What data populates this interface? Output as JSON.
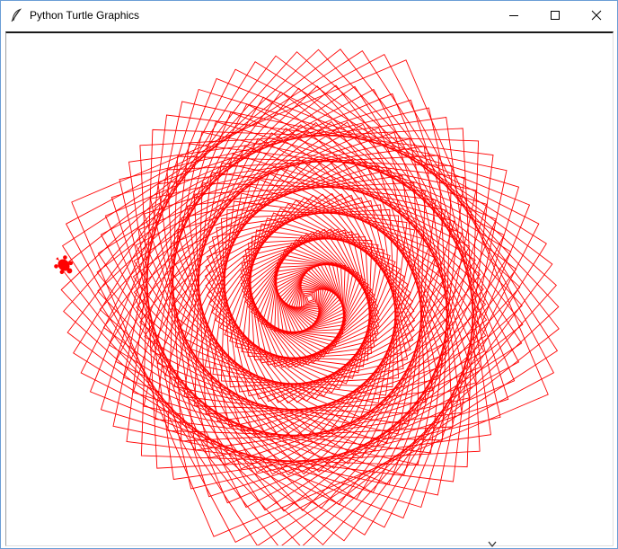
{
  "window": {
    "title": "Python Turtle Graphics",
    "icon": "feather-icon",
    "buttons": {
      "minimize": "minimize-icon",
      "maximize": "maximize-icon",
      "close": "close-icon"
    }
  },
  "colors": {
    "pen": "#ff0000",
    "background": "#ffffff",
    "window_border": "#6b9ed6"
  },
  "drawing": {
    "shape": "square-spiral",
    "squares_drawn": 126,
    "rotation_per_square_deg": 5,
    "turtle_shape": "turtle",
    "turtle_heading_deg": 45
  }
}
